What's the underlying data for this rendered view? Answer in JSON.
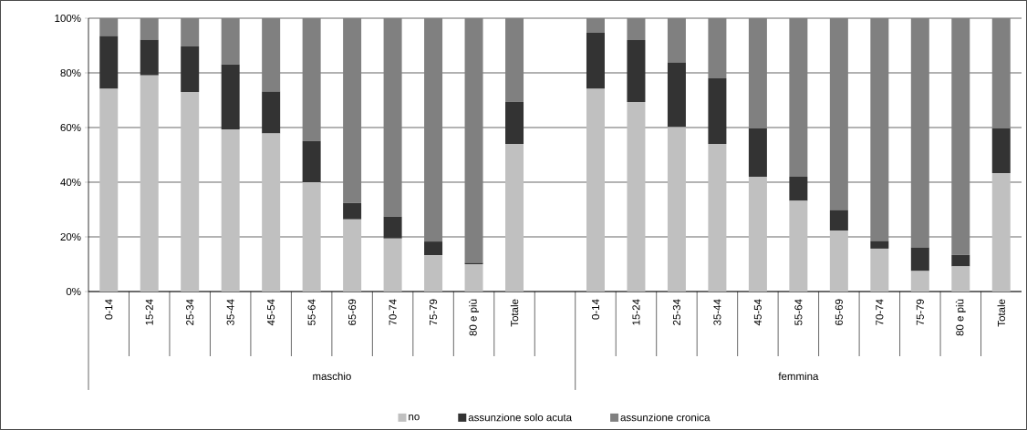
{
  "chart_data": {
    "type": "bar",
    "stacked": true,
    "categories": [
      "0-14",
      "15-24",
      "25-34",
      "35-44",
      "45-54",
      "55-64",
      "65-69",
      "70-74",
      "75-79",
      "80 e più",
      "Totale",
      null,
      "0-14",
      "15-24",
      "25-34",
      "35-44",
      "45-54",
      "55-64",
      "65-69",
      "70-74",
      "75-79",
      "80 e più",
      "Totale"
    ],
    "series": [
      {
        "name": "no",
        "color": "#c0c0c0",
        "values": [
          74.2,
          79.1,
          73.0,
          59.3,
          57.8,
          40.0,
          26.4,
          19.4,
          13.3,
          10.0,
          54.0,
          null,
          74.2,
          69.3,
          60.2,
          54.0,
          42.0,
          33.2,
          22.3,
          15.7,
          7.5,
          9.2,
          43.3
        ]
      },
      {
        "name": "assunzione solo acuta",
        "color": "#333333",
        "values": [
          19.3,
          13.0,
          16.7,
          23.8,
          15.4,
          15.1,
          6.0,
          8.0,
          5.0,
          0.5,
          15.4,
          null,
          20.5,
          22.7,
          23.6,
          24.0,
          17.7,
          8.8,
          7.4,
          2.8,
          8.6,
          4.2,
          16.4
        ]
      },
      {
        "name": "assunzione cronica",
        "color": "#808080",
        "values": [
          6.5,
          7.9,
          10.3,
          16.9,
          26.8,
          44.9,
          67.6,
          72.6,
          81.7,
          89.5,
          30.6,
          null,
          5.3,
          8.0,
          16.2,
          22.0,
          40.3,
          58.0,
          70.3,
          81.5,
          83.9,
          86.6,
          40.3
        ]
      }
    ],
    "ylim": [
      0,
      100
    ],
    "yticks": [
      {
        "value": 0,
        "label": "0%"
      },
      {
        "value": 20,
        "label": "20%"
      },
      {
        "value": 40,
        "label": "40%"
      },
      {
        "value": 60,
        "label": "60%"
      },
      {
        "value": 80,
        "label": "80%"
      },
      {
        "value": 100,
        "label": "100%"
      }
    ],
    "grid": "y",
    "legend": "bottom",
    "annotations": [
      "maschio",
      "femmina"
    ]
  }
}
